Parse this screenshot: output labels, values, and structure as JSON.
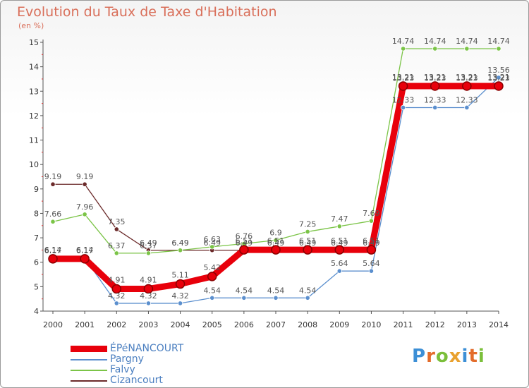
{
  "title": "Evolution du Taux de Taxe d'Habitation",
  "subtitle": "(en %)",
  "logo": {
    "letters": [
      "P",
      "r",
      "o",
      "x",
      "i",
      "t",
      "i"
    ],
    "colors": [
      "#3c8fd6",
      "#e36c2b",
      "#7bbf3a",
      "#e9a12e",
      "#3c8fd6",
      "#e36c2b",
      "#7bbf3a"
    ]
  },
  "chart_data": {
    "type": "line",
    "title": "Evolution du Taux de Taxe d'Habitation",
    "ylabel": "(en %)",
    "xlabel": "",
    "categories": [
      "2000",
      "2001",
      "2002",
      "2003",
      "2004",
      "2005",
      "2006",
      "2007",
      "2008",
      "2009",
      "2010",
      "2011",
      "2012",
      "2013",
      "2014"
    ],
    "ylim": [
      4,
      15
    ],
    "yticks": [
      "4",
      "5",
      "6",
      "7",
      "8",
      "9",
      "10",
      "11",
      "12",
      "13",
      "14",
      "15"
    ],
    "grid": false,
    "legend": "bottom-left",
    "series": [
      {
        "name": "Cizancourt",
        "color": "#6b2a2a",
        "width": 1.3,
        "values": [
          9.19,
          9.19,
          7.35,
          6.49,
          6.49,
          6.49,
          6.49,
          6.49,
          6.49,
          6.49,
          6.49,
          13.23,
          13.23,
          13.23,
          13.23
        ],
        "labels": [
          "9.19",
          "9.19",
          "7.35",
          "6.49",
          "6.49",
          "6.49",
          "6.49",
          "6.49",
          "6.49",
          "6.49",
          "6.49",
          "13.23",
          "13.23",
          "13.23",
          "13.23"
        ]
      },
      {
        "name": "Falvy",
        "color": "#7bc447",
        "width": 1.3,
        "values": [
          7.66,
          7.96,
          6.37,
          6.37,
          6.49,
          6.63,
          6.76,
          6.9,
          7.25,
          7.47,
          7.69,
          14.74,
          14.74,
          14.74,
          14.74
        ],
        "labels": [
          "7.66",
          "7.96",
          "6.37",
          "6.37",
          "6.49",
          "6.63",
          "6.76",
          "6.9",
          "7.25",
          "7.47",
          "7.69",
          "14.74",
          "14.74",
          "14.74",
          "14.74"
        ]
      },
      {
        "name": "Pargny",
        "color": "#5b8fce",
        "width": 1.3,
        "values": [
          6.17,
          6.17,
          4.32,
          4.32,
          4.32,
          4.54,
          4.54,
          4.54,
          4.54,
          5.64,
          5.64,
          12.33,
          12.33,
          12.33,
          13.56
        ],
        "labels": [
          "6.17",
          "6.17",
          "4.32",
          "4.32",
          "4.32",
          "4.54",
          "4.54",
          "4.54",
          "4.54",
          "5.64",
          "5.64",
          "12.33",
          "12.33",
          "12.33",
          "13.56"
        ]
      },
      {
        "name": "ÉPéNANCOURT",
        "color": "#e8000b",
        "width": 9,
        "values": [
          6.14,
          6.14,
          4.91,
          4.91,
          5.11,
          5.42,
          6.51,
          6.51,
          6.51,
          6.51,
          6.51,
          13.21,
          13.21,
          13.21,
          13.21
        ],
        "labels": [
          "6.14",
          "6.14",
          "4.91",
          "4.91",
          "5.11",
          "5.42",
          "6.51",
          "6.51",
          "6.51",
          "6.51",
          "6.51",
          "13.21",
          "13.21",
          "13.21",
          "13.21"
        ]
      }
    ]
  }
}
